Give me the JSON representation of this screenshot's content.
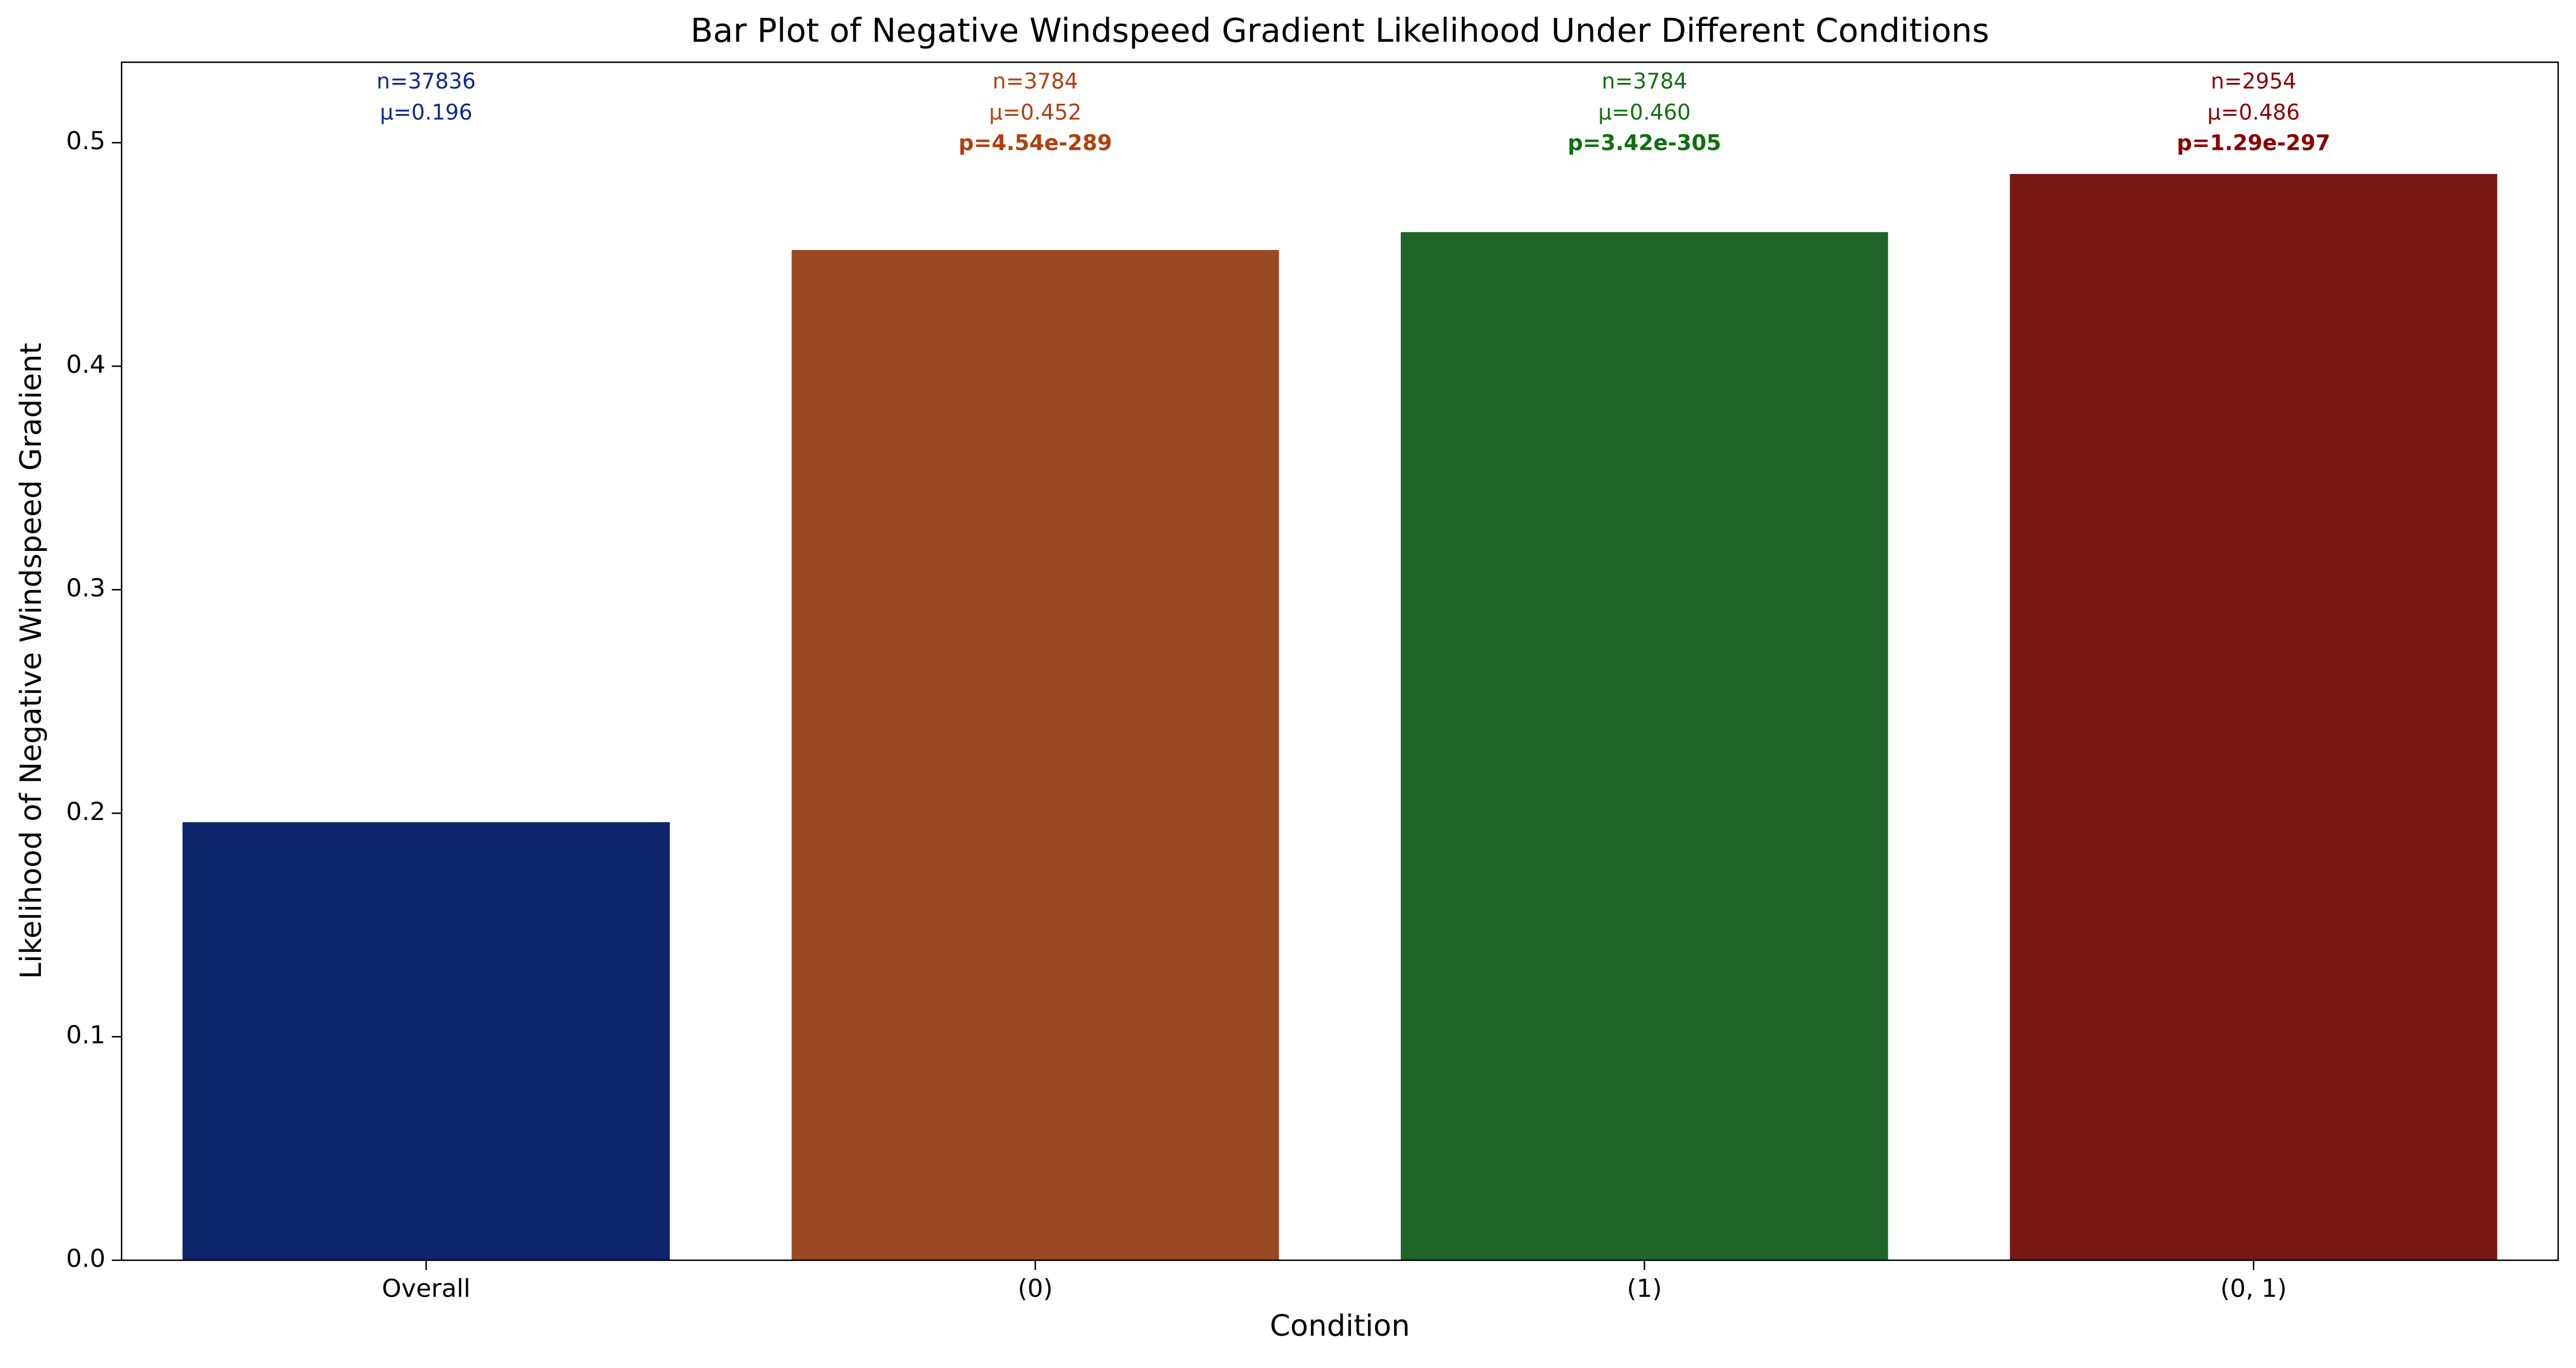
{
  "chart_data": {
    "type": "bar",
    "title": "Bar Plot of Negative Windspeed Gradient Likelihood Under Different Conditions",
    "x_label": "Condition",
    "y_label": "Likelihood of Negative Windspeed Gradient",
    "categories": [
      "Overall",
      "(0)",
      "(1)",
      "(0, 1)"
    ],
    "values": [
      0.196,
      0.452,
      0.46,
      0.486
    ],
    "value_labels": [
      "μ=0.196",
      "μ=0.452",
      "μ=0.460",
      "μ=0.486"
    ],
    "n_labels": [
      "n=37836",
      "n=3784",
      "n=3784",
      "n=2954"
    ],
    "p_labels": [
      null,
      "p=4.54e-289",
      "p=3.42e-305",
      "p=1.29e-297"
    ],
    "colors": [
      "#0f256b",
      "#9b4922",
      "#1f6527",
      "#771612"
    ],
    "label_colors": [
      "#0a2a8a",
      "#b04010",
      "#107010",
      "#8b0000"
    ],
    "ylim": [
      0,
      0.536
    ],
    "yticks": [
      {
        "value": 0,
        "label": "0.0"
      },
      0.1,
      0.2,
      0.3,
      0.4,
      0.5
    ],
    "grid": false
  }
}
